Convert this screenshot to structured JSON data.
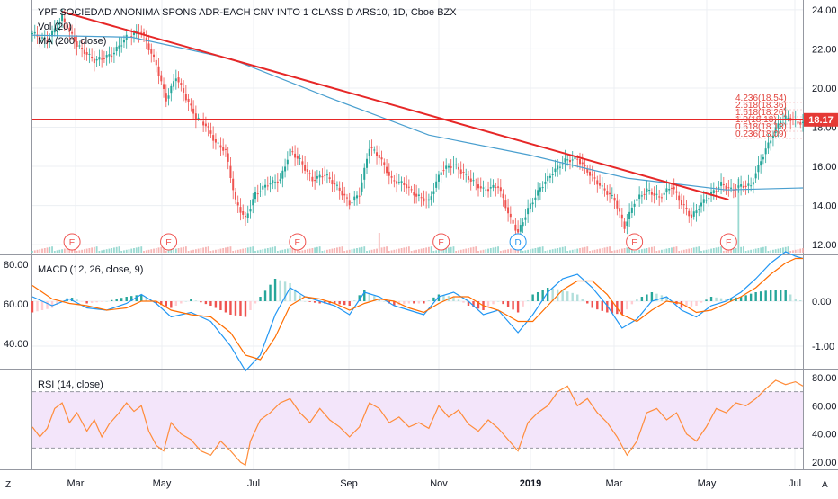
{
  "header": {
    "symbol_line": "YPF SOCIEDAD ANONIMA SPONS ADR-EACH CNV INTO 1 CLASS D ARS10, 1D, Cboe BZX",
    "volume_label": "Vol (20)",
    "ma_label": "MA (200, close)"
  },
  "price_tag": "18.17",
  "macd_label": "MACD (12, 26, close, 9)",
  "rsi_label": "RSI (14, close)",
  "corner_left": "Z",
  "corner_right": "A",
  "colors": {
    "up": "#26a69a",
    "down": "#ef5350",
    "trendline": "#e62727",
    "ma": "#4a9fcf",
    "macd_line": "#2196f3",
    "signal_line": "#ff6d00",
    "rsi_line": "#ff8c3a",
    "rsi_band": "#f3e5fa",
    "grid": "#eceff3",
    "earnings": "#ef5350",
    "dividend": "#2196f3"
  },
  "chart_data": [
    {
      "type": "candlestick",
      "title": "YPF SOCIEDAD ANONIMA SPONS ADR-EACH CNV INTO 1 CLASS D ARS10, 1D, Cboe BZX",
      "x_tick_labels": [
        "Mar",
        "May",
        "Jul",
        "Sep",
        "Nov",
        "2019",
        "Mar",
        "May",
        "Jul"
      ],
      "y_tick_labels": [
        "24.00",
        "22.00",
        "20.00",
        "18.00",
        "16.00",
        "14.00",
        "12.00"
      ],
      "ylim": [
        11.5,
        24.5
      ],
      "last_price": 18.17,
      "price_path": [
        [
          0,
          22.8
        ],
        [
          6,
          22.4
        ],
        [
          12,
          23.6
        ],
        [
          18,
          22.2
        ],
        [
          25,
          21.4
        ],
        [
          32,
          21.7
        ],
        [
          38,
          22.6
        ],
        [
          44,
          22.9
        ],
        [
          50,
          21.2
        ],
        [
          54,
          19.4
        ],
        [
          58,
          20.6
        ],
        [
          62,
          19.5
        ],
        [
          66,
          18.5
        ],
        [
          70,
          18.1
        ],
        [
          74,
          17.2
        ],
        [
          78,
          16.8
        ],
        [
          82,
          14.2
        ],
        [
          86,
          13.3
        ],
        [
          90,
          14.6
        ],
        [
          95,
          15.1
        ],
        [
          100,
          15.3
        ],
        [
          104,
          16.8
        ],
        [
          108,
          16.3
        ],
        [
          113,
          15.3
        ],
        [
          118,
          15.6
        ],
        [
          124,
          14.8
        ],
        [
          128,
          14.1
        ],
        [
          132,
          14.6
        ],
        [
          136,
          17.0
        ],
        [
          140,
          16.5
        ],
        [
          145,
          15.3
        ],
        [
          150,
          15.1
        ],
        [
          155,
          14.5
        ],
        [
          160,
          14.2
        ],
        [
          165,
          15.8
        ],
        [
          170,
          16.1
        ],
        [
          176,
          15.4
        ],
        [
          182,
          14.8
        ],
        [
          188,
          15.0
        ],
        [
          193,
          13.3
        ],
        [
          196,
          12.6
        ],
        [
          200,
          13.8
        ],
        [
          205,
          14.9
        ],
        [
          210,
          15.7
        ],
        [
          215,
          16.3
        ],
        [
          220,
          16.4
        ],
        [
          225,
          15.6
        ],
        [
          230,
          14.9
        ],
        [
          235,
          14.3
        ],
        [
          239,
          12.9
        ],
        [
          243,
          14.2
        ],
        [
          248,
          14.8
        ],
        [
          253,
          14.4
        ],
        [
          258,
          15.0
        ],
        [
          262,
          14.1
        ],
        [
          266,
          13.4
        ],
        [
          270,
          14.1
        ],
        [
          274,
          14.6
        ],
        [
          278,
          15.1
        ],
        [
          282,
          14.8
        ],
        [
          286,
          15.0
        ],
        [
          290,
          15.0
        ],
        [
          294,
          16.3
        ],
        [
          298,
          17.4
        ],
        [
          302,
          18.4
        ],
        [
          305,
          18.5
        ],
        [
          308,
          18.3
        ],
        [
          311,
          18.17
        ]
      ],
      "overlays": {
        "ma_200": {
          "label": "MA (200, close)",
          "points": [
            [
              0,
              22.7
            ],
            [
              40,
              22.6
            ],
            [
              80,
              21.5
            ],
            [
              120,
              19.5
            ],
            [
              160,
              17.6
            ],
            [
              200,
              16.6
            ],
            [
              240,
              15.4
            ],
            [
              280,
              14.8
            ],
            [
              311,
              14.9
            ]
          ]
        },
        "trendline": {
          "from": [
            12,
            23.9
          ],
          "to": [
            281,
            14.3
          ]
        },
        "horizontal_line": 18.4,
        "fibonacci_labels": [
          "4.236(18.54)",
          "2.618(18.36)",
          "1.618(18.26)",
          "1.0(18.18)",
          "0.618(18.13)",
          "0.236(18.09)"
        ]
      },
      "volume": {
        "label": "Vol (20)",
        "spikes": [
          [
            140,
            2.0
          ],
          [
            285,
            8.0
          ]
        ]
      },
      "events": [
        {
          "type": "earnings",
          "label": "E",
          "x": 16
        },
        {
          "type": "earnings",
          "label": "E",
          "x": 55
        },
        {
          "type": "earnings",
          "label": "E",
          "x": 107
        },
        {
          "type": "earnings",
          "label": "E",
          "x": 165
        },
        {
          "type": "dividend",
          "label": "D",
          "x": 196
        },
        {
          "type": "earnings",
          "label": "E",
          "x": 243
        },
        {
          "type": "earnings",
          "label": "E",
          "x": 281
        }
      ]
    },
    {
      "type": "macd",
      "title": "MACD (12, 26, close, 9)",
      "y_tick_labels_left": [
        "80.00",
        "60.00",
        "40.00"
      ],
      "y_tick_labels_right": [
        "0.00",
        "-1.00"
      ],
      "ylim": [
        -1.5,
        1.0
      ],
      "macd_line": [
        [
          0,
          0.1
        ],
        [
          8,
          -0.1
        ],
        [
          15,
          0.05
        ],
        [
          22,
          -0.15
        ],
        [
          30,
          -0.2
        ],
        [
          38,
          -0.05
        ],
        [
          44,
          0.15
        ],
        [
          50,
          -0.05
        ],
        [
          56,
          -0.35
        ],
        [
          64,
          -0.25
        ],
        [
          72,
          -0.45
        ],
        [
          80,
          -1.0
        ],
        [
          86,
          -1.55
        ],
        [
          92,
          -1.2
        ],
        [
          98,
          -0.3
        ],
        [
          104,
          0.3
        ],
        [
          110,
          0.1
        ],
        [
          116,
          0.0
        ],
        [
          122,
          -0.1
        ],
        [
          128,
          -0.3
        ],
        [
          134,
          0.2
        ],
        [
          140,
          0.1
        ],
        [
          146,
          -0.1
        ],
        [
          152,
          -0.2
        ],
        [
          158,
          -0.3
        ],
        [
          164,
          0.1
        ],
        [
          170,
          0.2
        ],
        [
          176,
          0.0
        ],
        [
          182,
          -0.3
        ],
        [
          188,
          -0.2
        ],
        [
          196,
          -0.7
        ],
        [
          202,
          -0.3
        ],
        [
          208,
          0.2
        ],
        [
          214,
          0.5
        ],
        [
          220,
          0.6
        ],
        [
          226,
          0.3
        ],
        [
          232,
          -0.1
        ],
        [
          238,
          -0.6
        ],
        [
          244,
          -0.4
        ],
        [
          250,
          0.0
        ],
        [
          256,
          0.1
        ],
        [
          262,
          -0.2
        ],
        [
          268,
          -0.35
        ],
        [
          274,
          -0.1
        ],
        [
          280,
          0.0
        ],
        [
          286,
          0.2
        ],
        [
          292,
          0.5
        ],
        [
          298,
          0.85
        ],
        [
          304,
          1.1
        ],
        [
          308,
          1.0
        ],
        [
          311,
          0.95
        ]
      ],
      "signal_line": [
        [
          0,
          0.35
        ],
        [
          8,
          0.05
        ],
        [
          15,
          -0.05
        ],
        [
          22,
          -0.1
        ],
        [
          30,
          -0.2
        ],
        [
          38,
          -0.15
        ],
        [
          44,
          0.0
        ],
        [
          50,
          0.0
        ],
        [
          56,
          -0.2
        ],
        [
          64,
          -0.3
        ],
        [
          72,
          -0.35
        ],
        [
          80,
          -0.7
        ],
        [
          86,
          -1.2
        ],
        [
          92,
          -1.3
        ],
        [
          98,
          -0.8
        ],
        [
          104,
          -0.1
        ],
        [
          110,
          0.1
        ],
        [
          116,
          0.05
        ],
        [
          122,
          -0.05
        ],
        [
          128,
          -0.2
        ],
        [
          134,
          -0.05
        ],
        [
          140,
          0.05
        ],
        [
          146,
          0.0
        ],
        [
          152,
          -0.15
        ],
        [
          158,
          -0.25
        ],
        [
          164,
          -0.05
        ],
        [
          170,
          0.1
        ],
        [
          176,
          0.1
        ],
        [
          182,
          -0.1
        ],
        [
          188,
          -0.2
        ],
        [
          196,
          -0.45
        ],
        [
          202,
          -0.45
        ],
        [
          208,
          -0.1
        ],
        [
          214,
          0.25
        ],
        [
          220,
          0.45
        ],
        [
          226,
          0.45
        ],
        [
          232,
          0.15
        ],
        [
          238,
          -0.3
        ],
        [
          244,
          -0.45
        ],
        [
          250,
          -0.2
        ],
        [
          256,
          0.0
        ],
        [
          262,
          -0.05
        ],
        [
          268,
          -0.25
        ],
        [
          274,
          -0.2
        ],
        [
          280,
          -0.05
        ],
        [
          286,
          0.1
        ],
        [
          292,
          0.3
        ],
        [
          298,
          0.6
        ],
        [
          304,
          0.85
        ],
        [
          308,
          0.95
        ],
        [
          311,
          0.95
        ]
      ]
    },
    {
      "type": "line",
      "title": "RSI (14, close)",
      "y_tick_labels": [
        "80.00",
        "60.00",
        "40.00",
        "20.00"
      ],
      "ylim": [
        15,
        85
      ],
      "band": [
        30,
        70
      ],
      "values": [
        [
          0,
          45
        ],
        [
          3,
          38
        ],
        [
          6,
          44
        ],
        [
          9,
          58
        ],
        [
          12,
          62
        ],
        [
          15,
          48
        ],
        [
          18,
          55
        ],
        [
          22,
          42
        ],
        [
          25,
          50
        ],
        [
          28,
          38
        ],
        [
          31,
          47
        ],
        [
          35,
          55
        ],
        [
          38,
          62
        ],
        [
          41,
          56
        ],
        [
          44,
          60
        ],
        [
          47,
          42
        ],
        [
          50,
          32
        ],
        [
          53,
          28
        ],
        [
          56,
          48
        ],
        [
          60,
          40
        ],
        [
          64,
          36
        ],
        [
          68,
          28
        ],
        [
          72,
          25
        ],
        [
          76,
          35
        ],
        [
          80,
          28
        ],
        [
          84,
          20
        ],
        [
          86,
          18
        ],
        [
          88,
          35
        ],
        [
          92,
          50
        ],
        [
          96,
          55
        ],
        [
          100,
          62
        ],
        [
          104,
          65
        ],
        [
          108,
          55
        ],
        [
          112,
          48
        ],
        [
          116,
          58
        ],
        [
          120,
          50
        ],
        [
          124,
          45
        ],
        [
          128,
          38
        ],
        [
          132,
          45
        ],
        [
          136,
          62
        ],
        [
          140,
          58
        ],
        [
          144,
          48
        ],
        [
          148,
          52
        ],
        [
          152,
          45
        ],
        [
          156,
          48
        ],
        [
          160,
          44
        ],
        [
          164,
          60
        ],
        [
          168,
          52
        ],
        [
          172,
          57
        ],
        [
          176,
          47
        ],
        [
          180,
          42
        ],
        [
          184,
          50
        ],
        [
          188,
          44
        ],
        [
          192,
          36
        ],
        [
          196,
          28
        ],
        [
          200,
          48
        ],
        [
          204,
          55
        ],
        [
          208,
          60
        ],
        [
          212,
          70
        ],
        [
          216,
          74
        ],
        [
          220,
          60
        ],
        [
          224,
          65
        ],
        [
          228,
          55
        ],
        [
          232,
          48
        ],
        [
          236,
          38
        ],
        [
          240,
          25
        ],
        [
          244,
          35
        ],
        [
          248,
          55
        ],
        [
          252,
          58
        ],
        [
          256,
          50
        ],
        [
          260,
          55
        ],
        [
          264,
          40
        ],
        [
          268,
          35
        ],
        [
          272,
          45
        ],
        [
          276,
          58
        ],
        [
          280,
          55
        ],
        [
          284,
          62
        ],
        [
          288,
          60
        ],
        [
          292,
          65
        ],
        [
          296,
          72
        ],
        [
          300,
          78
        ],
        [
          304,
          75
        ],
        [
          308,
          77
        ],
        [
          311,
          74
        ]
      ]
    }
  ]
}
